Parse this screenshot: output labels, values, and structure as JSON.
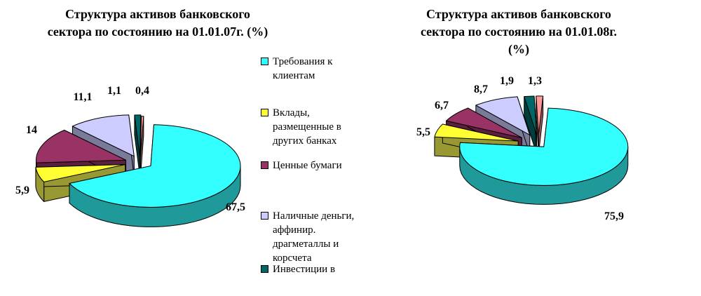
{
  "chart_data": [
    {
      "type": "pie",
      "title": "Структура активов банковского сектора по состоянию на 01.01.07г. (%)",
      "title_lines": [
        "Структура активов банковского",
        "сектора по состоянию на 01.01.07г. (%)"
      ],
      "categories": [
        "Требования к клиентам",
        "Вклады, размещенные в других банках",
        "Ценные бумаги",
        "Наличные деньги, аффинир. драгметаллы и корсчета",
        "Инвестиции в",
        ""
      ],
      "values": [
        67.5,
        5.9,
        14,
        11.1,
        1.1,
        0.4
      ],
      "value_labels": [
        "67,5",
        "5,9",
        "14",
        "11,1",
        "1,1",
        "0,4"
      ],
      "legend_position": "right",
      "three_d": true
    },
    {
      "type": "pie",
      "title": "Структура активов банковского сектора по состоянию на 01.01.08г. (%)",
      "title_lines": [
        "Структура активов банковского",
        "сектора по состоянию на 01.01.08г.",
        "(%)"
      ],
      "categories": [
        "Требования к клиентам",
        "Вклады, размещенные в других банках",
        "Ценные бумаги",
        "Наличные деньги, аффинир. драгметаллы и корсчета",
        "Инвестиции в",
        ""
      ],
      "values": [
        75.9,
        5.5,
        6.7,
        8.7,
        1.9,
        1.3
      ],
      "value_labels": [
        "75,9",
        "5,5",
        "6,7",
        "8,7",
        "1,9",
        "1,3"
      ],
      "three_d": true
    }
  ],
  "legend": {
    "items": [
      {
        "label": "Требования к клиентам",
        "lines": [
          "Требования к",
          "клиентам"
        ],
        "color": "#33ffff"
      },
      {
        "label": "Вклады, размещенные в других банках",
        "lines": [
          "Вклады,",
          "размещенные в",
          "других банках"
        ],
        "color": "#ffff33"
      },
      {
        "label": "Ценные бумаги",
        "lines": [
          "Ценные бумаги"
        ],
        "color": "#993366"
      },
      {
        "label": "Наличные деньги, аффинир. драгметаллы и корсчета",
        "lines": [
          "Наличные деньги,",
          "аффинир.",
          "драгметаллы и",
          "корсчета"
        ],
        "color": "#ccccff"
      },
      {
        "label": "Инвестиции в",
        "lines": [
          "Инвестиции в"
        ],
        "color": "#006666"
      }
    ]
  },
  "colors": {
    "top": [
      "#33ffff",
      "#ffff33",
      "#993366",
      "#ccccff",
      "#006666",
      "#ff9999"
    ],
    "side": [
      "#1f9999",
      "#999933",
      "#5c1f3d",
      "#7a7a99",
      "#003d3d",
      "#995c5c"
    ]
  }
}
